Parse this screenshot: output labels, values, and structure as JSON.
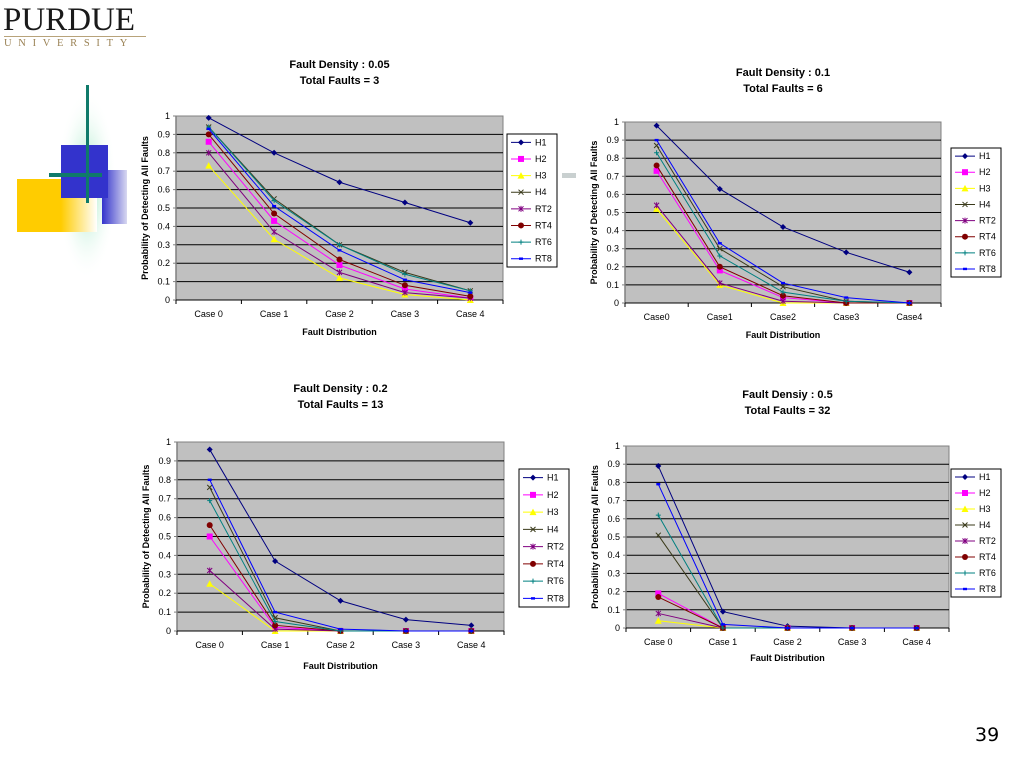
{
  "logo": {
    "main": "PURDUE",
    "sub": "UNIVERSITY"
  },
  "page_number": "39",
  "chart_data": [
    {
      "type": "line",
      "title": [
        "Fault Density : 0.05",
        "Total Faults = 3"
      ],
      "xlabel": "Fault Distribution",
      "ylabel": "Probability of Detecting All Faults",
      "categories": [
        "Case 0",
        "Case 1",
        "Case 2",
        "Case 3",
        "Case 4"
      ],
      "ylim": [
        0,
        1
      ],
      "yticks": [
        "0",
        "0.1",
        "0.2",
        "0.3",
        "0.4",
        "0.5",
        "0.6",
        "0.7",
        "0.8",
        "0.9",
        "1"
      ],
      "grid": true,
      "legend": "right",
      "series": [
        {
          "name": "H1",
          "values": [
            0.99,
            0.8,
            0.64,
            0.53,
            0.42
          ]
        },
        {
          "name": "H2",
          "values": [
            0.86,
            0.43,
            0.19,
            0.06,
            0.01
          ]
        },
        {
          "name": "H3",
          "values": [
            0.73,
            0.33,
            0.12,
            0.03,
            0.0
          ]
        },
        {
          "name": "H4",
          "values": [
            0.94,
            0.55,
            0.3,
            0.15,
            0.05
          ]
        },
        {
          "name": "RT2",
          "values": [
            0.8,
            0.37,
            0.15,
            0.04,
            0.01
          ]
        },
        {
          "name": "RT4",
          "values": [
            0.9,
            0.47,
            0.22,
            0.08,
            0.02
          ]
        },
        {
          "name": "RT6",
          "values": [
            0.94,
            0.54,
            0.3,
            0.14,
            0.05
          ]
        },
        {
          "name": "RT8",
          "values": [
            0.93,
            0.51,
            0.27,
            0.11,
            0.04
          ]
        }
      ]
    },
    {
      "type": "line",
      "title": [
        "Fault Density : 0.1",
        "Total Faults = 6"
      ],
      "xlabel": "Fault Distribution",
      "ylabel": "Probability of Detecting All Faults",
      "categories": [
        "Case0",
        "Case1",
        "Case2",
        "Case3",
        "Case4"
      ],
      "ylim": [
        0,
        1
      ],
      "yticks": [
        "0",
        "0.1",
        "0.2",
        "0.3",
        "0.4",
        "0.5",
        "0.6",
        "0.7",
        "0.8",
        "0.9",
        "1"
      ],
      "grid": true,
      "legend": "right",
      "series": [
        {
          "name": "H1",
          "values": [
            0.98,
            0.63,
            0.42,
            0.28,
            0.17
          ]
        },
        {
          "name": "H2",
          "values": [
            0.73,
            0.18,
            0.03,
            0.0,
            0.0
          ]
        },
        {
          "name": "H3",
          "values": [
            0.52,
            0.1,
            0.0,
            0.0,
            0.0
          ]
        },
        {
          "name": "H4",
          "values": [
            0.87,
            0.3,
            0.09,
            0.01,
            0.0
          ]
        },
        {
          "name": "RT2",
          "values": [
            0.54,
            0.11,
            0.01,
            0.0,
            0.0
          ]
        },
        {
          "name": "RT4",
          "values": [
            0.76,
            0.2,
            0.04,
            0.0,
            0.0
          ]
        },
        {
          "name": "RT6",
          "values": [
            0.83,
            0.26,
            0.06,
            0.01,
            0.0
          ]
        },
        {
          "name": "RT8",
          "values": [
            0.9,
            0.33,
            0.11,
            0.03,
            0.0
          ]
        }
      ]
    },
    {
      "type": "line",
      "title": [
        "Fault Density : 0.2",
        "Total Faults = 13"
      ],
      "xlabel": "Fault Distribution",
      "ylabel": "Probability of Detecting All Faults",
      "categories": [
        "Case 0",
        "Case 1",
        "Case 2",
        "Case 3",
        "Case 4"
      ],
      "ylim": [
        0,
        1
      ],
      "yticks": [
        "0",
        "0.1",
        "0.2",
        "0.3",
        "0.4",
        "0.5",
        "0.6",
        "0.7",
        "0.8",
        "0.9",
        "1"
      ],
      "grid": true,
      "legend": "right",
      "series": [
        {
          "name": "H1",
          "values": [
            0.96,
            0.37,
            0.16,
            0.06,
            0.03
          ]
        },
        {
          "name": "H2",
          "values": [
            0.5,
            0.02,
            0.0,
            0.0,
            0.0
          ]
        },
        {
          "name": "H3",
          "values": [
            0.25,
            0.0,
            0.0,
            0.0,
            0.0
          ]
        },
        {
          "name": "H4",
          "values": [
            0.76,
            0.07,
            0.0,
            0.0,
            0.0
          ]
        },
        {
          "name": "RT2",
          "values": [
            0.32,
            0.01,
            0.0,
            0.0,
            0.0
          ]
        },
        {
          "name": "RT4",
          "values": [
            0.56,
            0.03,
            0.0,
            0.0,
            0.0
          ]
        },
        {
          "name": "RT6",
          "values": [
            0.69,
            0.05,
            0.0,
            0.0,
            0.0
          ]
        },
        {
          "name": "RT8",
          "values": [
            0.8,
            0.1,
            0.01,
            0.0,
            0.0
          ]
        }
      ]
    },
    {
      "type": "line",
      "title": [
        "Fault Densiy : 0.5",
        "Total Faults = 32"
      ],
      "xlabel": "Fault Distribution",
      "ylabel": "Probability of Detecting All Faults",
      "categories": [
        "Case 0",
        "Case 1",
        "Case 2",
        "Case 3",
        "Case 4"
      ],
      "ylim": [
        0,
        1
      ],
      "yticks": [
        "0",
        "0.1",
        "0.2",
        "0.3",
        "0.4",
        "0.5",
        "0.6",
        "0.7",
        "0.8",
        "0.9",
        "1"
      ],
      "grid": true,
      "legend": "right",
      "series": [
        {
          "name": "H1",
          "values": [
            0.89,
            0.09,
            0.01,
            0.0,
            0.0
          ]
        },
        {
          "name": "H2",
          "values": [
            0.19,
            0.0,
            0.0,
            0.0,
            0.0
          ]
        },
        {
          "name": "H3",
          "values": [
            0.04,
            0.0,
            0.0,
            0.0,
            0.0
          ]
        },
        {
          "name": "H4",
          "values": [
            0.51,
            0.0,
            0.0,
            0.0,
            0.0
          ]
        },
        {
          "name": "RT2",
          "values": [
            0.08,
            0.0,
            0.0,
            0.0,
            0.0
          ]
        },
        {
          "name": "RT4",
          "values": [
            0.17,
            0.0,
            0.0,
            0.0,
            0.0
          ]
        },
        {
          "name": "RT6",
          "values": [
            0.62,
            0.0,
            0.0,
            0.0,
            0.0
          ]
        },
        {
          "name": "RT8",
          "values": [
            0.79,
            0.02,
            0.0,
            0.0,
            0.0
          ]
        }
      ]
    }
  ],
  "series_style": {
    "H1": {
      "color": "#000080",
      "marker": "diamond"
    },
    "H2": {
      "color": "#ff00ff",
      "marker": "square"
    },
    "H3": {
      "color": "#ffff00",
      "marker": "triangle"
    },
    "H4": {
      "color": "#3a3a1a",
      "marker": "x"
    },
    "RT2": {
      "color": "#800080",
      "marker": "star"
    },
    "RT4": {
      "color": "#800000",
      "marker": "circle"
    },
    "RT6": {
      "color": "#008080",
      "marker": "plus"
    },
    "RT8": {
      "color": "#0000ff",
      "marker": "dash"
    }
  },
  "plot_bg": "#c0c0c0"
}
